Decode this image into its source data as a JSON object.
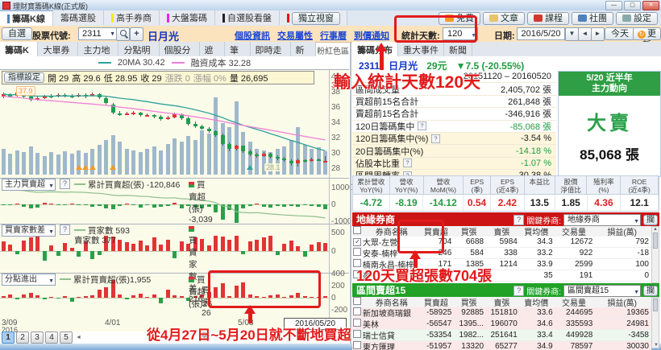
{
  "window": {
    "title": "理財寶籌碼K線(正式版)"
  },
  "main_tabs": [
    {
      "label": "籌碼K線",
      "bar": "#4f81bd",
      "active": true
    },
    {
      "label": "籌碼選股",
      "bar": "",
      "active": false
    },
    {
      "label": "高手券商",
      "bar": "#f4ec00",
      "active": false
    },
    {
      "label": "大盤籌碼",
      "bar": "#ee22ee",
      "active": false
    },
    {
      "label": "自選股看盤",
      "bar": "#222222",
      "active": false
    },
    {
      "label": "K線",
      "bar": "#ee1111",
      "active": false
    },
    {
      "label": "說明",
      "bar": "",
      "active": false
    }
  ],
  "standalone_btn": "獨立視窗",
  "account_buttons": [
    {
      "label": "免費",
      "icon": "free-badge",
      "icon_color": "#f59a23"
    },
    {
      "label": "文章",
      "icon": "article-icon",
      "icon_color": "#e8c36a"
    },
    {
      "label": "課程",
      "icon": "course-icon",
      "icon_color": "#d23a2e"
    },
    {
      "label": "社團",
      "icon": "community-icon",
      "icon_color": "#4f81bd"
    },
    {
      "label": "設定",
      "icon": "settings-icon",
      "icon_color": "#8aa"
    }
  ],
  "toolbar": {
    "favorite_btn": "自選",
    "stock_code_label": "股票代號:",
    "stock_code": "2311",
    "stock_name": "日月光",
    "links": [
      "個股資訊",
      "交易屬性",
      "行事曆",
      "到價通知"
    ],
    "stat_days_label": "統計天數:",
    "stat_days_value": "120",
    "date_label": "日期:",
    "date_value": "2016/5/20",
    "today_btn": "今天",
    "update_btn": "更新"
  },
  "chart_tabs": [
    {
      "label": "籌碼K線",
      "active": true
    },
    {
      "label": "大單券商",
      "active": false
    },
    {
      "label": "主力地圖",
      "active": false
    },
    {
      "label": "分點明細",
      "active": false
    },
    {
      "label": "個股分析",
      "active": false
    },
    {
      "label": "遮蔽",
      "active": false
    },
    {
      "label": "筆記",
      "active": false
    },
    {
      "label": "即時走勢",
      "active": false
    },
    {
      "label": "新聞",
      "active": false
    }
  ],
  "pink_zone_label": "粉紅色區",
  "indicator_btn": "指標設定",
  "ohlc": {
    "o": "開 29",
    "h": "高 29.6",
    "l": "低 28.95",
    "c": "收 29",
    "chg": "漲跌 0",
    "chg_pct": "漲幅 0%",
    "vol": "量 26,695"
  },
  "right_tabs": [
    {
      "label": "籌碼分布",
      "active": true
    },
    {
      "label": "重大事件",
      "active": false
    },
    {
      "label": "新聞",
      "active": false
    }
  ],
  "quote": {
    "code": "2311",
    "name": "日月光",
    "price": "29元",
    "change": "▼7.5 (-20.55%)"
  },
  "summary_rows": [
    {
      "label": "",
      "q": false,
      "value": "20151120 – 20160520",
      "vc": "dark",
      "bg": "white"
    },
    {
      "label": "區間成交量",
      "q": false,
      "value": "2,405,702 張",
      "vc": "dark",
      "bg": "white"
    },
    {
      "label": "買超前15名合計",
      "q": false,
      "value": "261,848 張",
      "vc": "dark",
      "bg": "white"
    },
    {
      "label": "賣超前15名合計",
      "q": false,
      "value": "-346,916 張",
      "vc": "dark",
      "bg": "white"
    },
    {
      "label": "120日籌碼集中",
      "q": true,
      "value": "-85,068 張",
      "vc": "green",
      "bg": "white"
    },
    {
      "label": "120日籌碼集中(%)",
      "q": true,
      "value": "-3.54 %",
      "vc": "dark",
      "bg": "yellow"
    },
    {
      "label": "20日籌碼集中(%)",
      "q": false,
      "value": "-14.18 %",
      "vc": "green",
      "bg": "yellow"
    },
    {
      "label": "佔股本比重",
      "q": true,
      "value": "-1.07 %",
      "vc": "green",
      "bg": "yellow"
    },
    {
      "label": "區間周轉率",
      "q": true,
      "value": "30.38 %",
      "vc": "dark",
      "bg": "yellow"
    }
  ],
  "action_box": {
    "line1": "5/20 近半年",
    "line2": "主力動向",
    "verdict": "大賣",
    "amount": "85,068 張"
  },
  "fundamental": {
    "headers": [
      "累計營收|YoY(%)",
      "營收|YoY(%)",
      "營收|MoM(%)",
      "EPS|(季)",
      "EPS|(近4季)",
      "本益比|",
      "股價|淨值比",
      "殖利率|(%)",
      "ROE|(近4季)"
    ],
    "values": [
      {
        "v": "-4.72",
        "c": "green"
      },
      {
        "v": "-8.19",
        "c": "green"
      },
      {
        "v": "-14.12",
        "c": "green"
      },
      {
        "v": "0.54",
        "c": "red"
      },
      {
        "v": "2.42",
        "c": "red"
      },
      {
        "v": "13.5",
        "c": "dark"
      },
      {
        "v": "1.85",
        "c": "dark"
      },
      {
        "v": "4.36",
        "c": "red"
      },
      {
        "v": "12.1",
        "c": "dark"
      }
    ]
  },
  "broker_common": {
    "key_label": "關鍵券商:",
    "capture_btn": "攔",
    "name_col": "券商名稱"
  },
  "geo_table": {
    "title": "地緣券商",
    "select_value": "地緣券商",
    "cols": [
      "買賣超",
      "買張",
      "賣張",
      "買均價",
      "交易量",
      "損益(萬)"
    ],
    "rows": [
      {
        "checked": true,
        "name": "大眾-左營",
        "cells": [
          "704",
          "6688",
          "5984",
          "34.3",
          "12672",
          "792"
        ]
      },
      {
        "checked": false,
        "name": "安泰-楠梓",
        "cells": [
          "246",
          "584",
          "338",
          "33.2",
          "922",
          "-18"
        ]
      },
      {
        "checked": false,
        "name": "楠南永昌-楠梓",
        "cells": [
          "171",
          "1385",
          "1214",
          "33.9",
          "2599",
          "100"
        ]
      },
      {
        "checked": false,
        "name": "盈",
        "cells": [
          "",
          "",
          "",
          "35",
          "191",
          "0"
        ]
      }
    ]
  },
  "sell_table": {
    "title": "區間賣超15",
    "select_value": "區間賣超15",
    "cols": [
      "買賣超",
      "買張",
      "賣張",
      "賣均價",
      "交易量",
      "損益(萬)"
    ],
    "rows": [
      {
        "checked": false,
        "name": "新加坡商瑞銀",
        "cells": [
          "-58925",
          "92885",
          "151810",
          "33.6",
          "244695",
          "19365"
        ]
      },
      {
        "checked": false,
        "name": "美林",
        "cells": [
          "-56547",
          "1395...",
          "196070",
          "34.6",
          "335593",
          "24981"
        ]
      },
      {
        "checked": false,
        "name": "瑞士信貸",
        "cells": [
          "-53354",
          "1982...",
          "251641",
          "33.4",
          "449928",
          "-3458"
        ]
      },
      {
        "checked": false,
        "name": "東方匯理",
        "cells": [
          "-51957",
          "13320",
          "65277",
          "34.9",
          "78597",
          "30030"
        ]
      }
    ]
  },
  "annotations": {
    "stat_days_note": "輸入統計天數120天",
    "buy_note": "120天買超張數704張",
    "trend_note": "從4月27日~5月20日就不斷地買超"
  },
  "pagination": {
    "pages": [
      "1",
      "2",
      "3",
      "4",
      "5"
    ],
    "arrow": "◄"
  },
  "x_axis": {
    "labels": [
      {
        "text": "3/09",
        "sub": "2016",
        "x": 2
      },
      {
        "text": "4/01",
        "x": 130
      },
      {
        "text": "5/03",
        "x": 295
      }
    ],
    "end_box": "2016/05/20"
  },
  "chart_data": [
    {
      "type": "candlestick",
      "title": "2311 日月光 籌碼K線 (120日)",
      "legend": [
        {
          "label": "20MA 30.42",
          "color": "#2fa39b"
        },
        {
          "label": "融資成本 32.28",
          "color": "#f07fd8"
        }
      ],
      "yticks": [
        40,
        38,
        36,
        34,
        32,
        30,
        28
      ],
      "extra_labels": [
        {
          "text": "39.01",
          "color": "#cc2222"
        },
        {
          "text": "37.9",
          "color": "#f59a23"
        },
        {
          "text": "28.1",
          "color": "#a8a890"
        }
      ],
      "x_labels": [
        "3/09",
        "4/01",
        "5/03",
        "2016/05/20"
      ],
      "markers": {
        "orange_triangle_idx": [
          11,
          12,
          13,
          16
        ],
        "teal_triangle_idx": [
          36
        ]
      },
      "candles": [
        [
          37.4,
          37.9,
          37.2,
          37.7,
          30
        ],
        [
          37.7,
          37.8,
          37.3,
          37.4,
          24
        ],
        [
          37.5,
          38.0,
          37.4,
          37.9,
          28
        ],
        [
          37.9,
          38.0,
          37.2,
          37.4,
          26
        ],
        [
          37.4,
          37.6,
          36.7,
          36.9,
          33
        ],
        [
          36.9,
          37.4,
          36.8,
          37.2,
          25
        ],
        [
          37.2,
          37.6,
          37.0,
          37.5,
          22
        ],
        [
          37.5,
          37.7,
          37.2,
          37.4,
          26
        ],
        [
          37.4,
          37.8,
          37.3,
          37.6,
          23
        ],
        [
          37.6,
          37.8,
          37.3,
          37.5,
          27
        ],
        [
          37.5,
          37.7,
          37.2,
          37.4,
          24
        ],
        [
          37.4,
          37.8,
          37.3,
          37.6,
          28
        ],
        [
          37.6,
          37.8,
          37.2,
          37.5,
          25
        ],
        [
          37.5,
          37.9,
          37.4,
          37.7,
          30
        ],
        [
          37.7,
          37.8,
          37.1,
          37.3,
          35
        ],
        [
          37.2,
          37.4,
          36.3,
          36.5,
          40
        ],
        [
          36.3,
          36.5,
          35.1,
          35.3,
          46
        ],
        [
          35.2,
          35.5,
          34.8,
          35.0,
          38
        ],
        [
          35.0,
          35.4,
          34.9,
          35.2,
          30
        ],
        [
          35.2,
          35.5,
          35.0,
          35.3,
          28
        ],
        [
          35.3,
          35.4,
          34.7,
          34.9,
          26
        ],
        [
          34.9,
          35.2,
          34.7,
          35.0,
          30
        ],
        [
          35.0,
          35.1,
          34.5,
          34.7,
          33
        ],
        [
          34.7,
          34.9,
          34.2,
          34.4,
          28
        ],
        [
          34.4,
          34.8,
          34.3,
          34.6,
          36
        ],
        [
          34.6,
          35.3,
          34.5,
          35.1,
          42
        ],
        [
          35.1,
          35.2,
          34.3,
          34.5,
          38
        ],
        [
          34.5,
          34.7,
          33.6,
          33.8,
          45
        ],
        [
          33.8,
          34.1,
          33.3,
          33.5,
          40
        ],
        [
          33.5,
          33.7,
          33.0,
          33.2,
          52
        ],
        [
          33.2,
          33.4,
          32.6,
          32.8,
          48
        ],
        [
          32.8,
          33.0,
          32.1,
          32.3,
          90
        ],
        [
          32.3,
          32.5,
          31.0,
          31.2,
          60
        ],
        [
          31.2,
          31.4,
          30.2,
          30.5,
          55
        ],
        [
          30.5,
          31.1,
          30.3,
          30.9,
          85
        ],
        [
          30.9,
          31.0,
          30.0,
          30.2,
          50
        ],
        [
          30.2,
          30.4,
          29.6,
          29.8,
          38
        ],
        [
          29.8,
          30.0,
          29.4,
          29.6,
          30
        ],
        [
          29.6,
          30.1,
          29.5,
          29.9,
          28
        ],
        [
          29.9,
          30.0,
          29.3,
          29.5,
          26
        ],
        [
          29.5,
          29.7,
          29.1,
          29.3,
          30
        ],
        [
          29.3,
          29.5,
          28.8,
          29.0,
          33
        ],
        [
          29.0,
          29.2,
          28.3,
          28.6,
          40
        ],
        [
          28.6,
          29.3,
          28.2,
          29.1,
          55
        ],
        [
          29.1,
          29.2,
          28.7,
          28.9,
          35
        ],
        [
          28.9,
          29.4,
          28.8,
          29.2,
          30
        ],
        [
          29.2,
          29.3,
          28.9,
          28.95,
          32
        ],
        [
          29.0,
          29.6,
          28.95,
          29.0,
          27
        ]
      ]
    },
    {
      "type": "bar",
      "name": "主力買賣超",
      "legend_line": "累計買賣超(張) -120,846",
      "legend_bar": "買賣超(張) -3,039",
      "yticks": [
        10000,
        0,
        -10000
      ],
      "values": [
        -600,
        -300,
        400,
        -1500,
        -2600,
        -2000,
        800,
        400,
        -300,
        -700,
        300,
        -400,
        -700,
        -1500,
        -800,
        -2300,
        -2900,
        -1100,
        400,
        -600,
        -1900,
        -400,
        -2100,
        -1500,
        -900,
        900,
        -2600,
        -800,
        -2000,
        -2300,
        -1300,
        -4600,
        -9200,
        -3100,
        -12400,
        -2600,
        -900,
        500,
        -1600,
        -2100,
        -1100,
        -1600,
        -900,
        -1300,
        -700,
        -1000,
        -1600,
        -3039
      ]
    },
    {
      "type": "bar",
      "name": "買賣家數差",
      "legend_line": "買家數 593",
      "legend_line2": "賣家數 377",
      "legend_bar": "買賣家數差 216",
      "yticks": [
        500,
        0
      ],
      "values": [
        260,
        180,
        -90,
        280,
        360,
        430,
        -260,
        150,
        -130,
        220,
        90,
        -160,
        260,
        -210,
        -110,
        430,
        390,
        300,
        250,
        200,
        290,
        150,
        360,
        180,
        310,
        -190,
        260,
        200,
        360,
        330,
        150,
        460,
        390,
        310,
        430,
        -90,
        260,
        300,
        360,
        410,
        -110,
        200,
        290,
        120,
        -150,
        180,
        250,
        216
      ]
    },
    {
      "type": "bar",
      "name": "分點進出",
      "legend_line": "累計買賣超(張)1,955",
      "legend_bar": "買賣超(張)26",
      "note": "買張 26 賣張 0",
      "yticks": [
        400,
        200,
        0,
        -200
      ],
      "values": [
        30,
        50,
        -20,
        60,
        80,
        40,
        -30,
        20,
        -10,
        30,
        -60,
        15,
        25,
        35,
        130,
        180,
        290,
        60,
        -25,
        40,
        70,
        20,
        55,
        -95,
        135,
        40,
        25,
        -50,
        30,
        60,
        95,
        175,
        240,
        25,
        205,
        250,
        60,
        25,
        15,
        35,
        50,
        20,
        40,
        85,
        25,
        20,
        15,
        26
      ]
    }
  ]
}
